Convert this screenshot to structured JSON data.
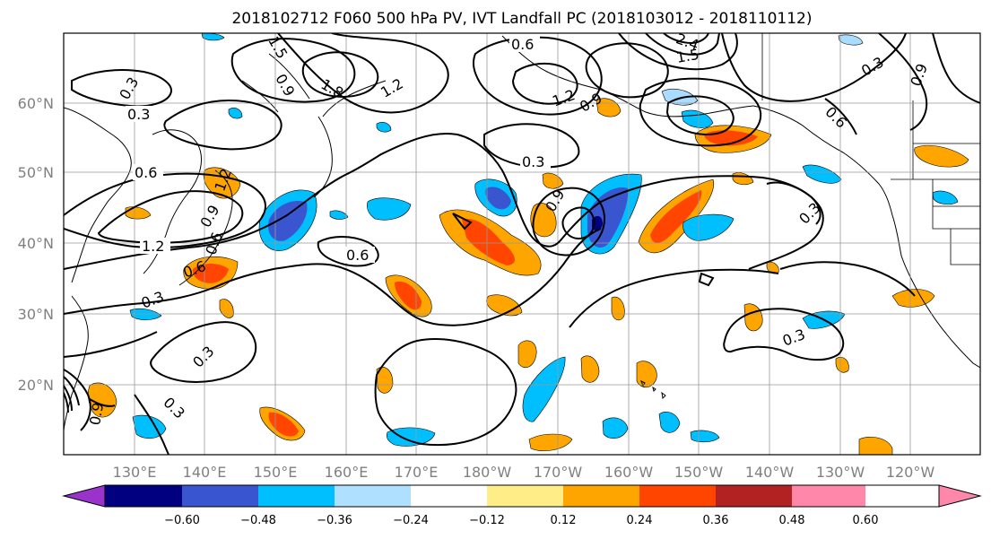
{
  "title": "2018102712 F060 500 hPa PV, IVT Landfall PC (2018103012 - 2018110112)",
  "map": {
    "lat_labels": [
      "60°N",
      "50°N",
      "40°N",
      "30°N",
      "20°N"
    ],
    "lon_labels": [
      "130°E",
      "140°E",
      "150°E",
      "160°E",
      "170°E",
      "180°W",
      "170°W",
      "160°W",
      "150°W",
      "140°W",
      "130°W",
      "120°W"
    ],
    "contour_labels": [
      "0.3",
      "0.3",
      "0.6",
      "1.2",
      "0.6",
      "0.3",
      "0.3",
      "0.6",
      "0.3",
      "0.9",
      "0.3",
      "0.3",
      "0.6",
      "1.2",
      "0.9",
      "0.3",
      "1.5",
      "0.9",
      "1.8",
      "1.2",
      "0.6",
      "1.2",
      "0.9",
      "2.4",
      "1.5",
      "0.3",
      "0.9",
      "0.6",
      "0.9"
    ],
    "positive_color_scale": [
      "#ffee88",
      "#ffa500",
      "#ff4500"
    ],
    "negative_color_scale": [
      "#aadcff",
      "#00bfff",
      "#3a55d0",
      "#000080"
    ]
  },
  "colorbar": {
    "ticks": [
      "−0.60",
      "−0.48",
      "−0.36",
      "−0.24",
      "−0.12",
      "0.12",
      "0.24",
      "0.36",
      "0.48",
      "0.60"
    ],
    "colors": [
      "#9933cc",
      "#000080",
      "#3a55d0",
      "#00bfff",
      "#b0e0ff",
      "#ffffff",
      "#ffee88",
      "#ffa500",
      "#ff4500",
      "#b22222",
      "#ff88aa"
    ]
  }
}
